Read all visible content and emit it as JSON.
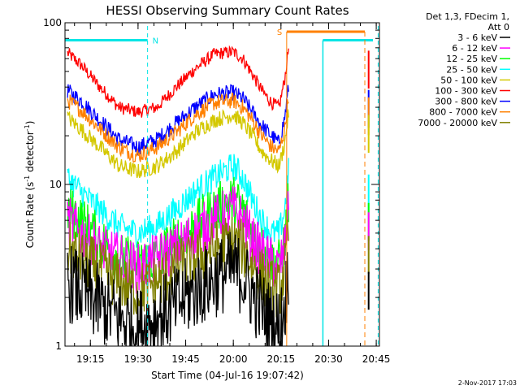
{
  "chart_data": {
    "type": "line",
    "title": "HESSI Observing Summary Count Rates",
    "xlabel": "Start Time (04-Jul-16 19:07:42)",
    "ylabel_main": "Count Rate (s",
    "ylabel_sup1": "-1",
    "ylabel_mid": " detector",
    "ylabel_sup2": "-1",
    "ylabel_end": ")",
    "yscale": "log",
    "ylim": [
      1,
      100
    ],
    "xlim_minutes": [
      19.1167,
      20.7667
    ],
    "x_tick_labels": [
      "19:15",
      "19:30",
      "19:45",
      "20:00",
      "20:15",
      "20:30",
      "20:45"
    ],
    "x_tick_values": [
      19.25,
      19.5,
      19.75,
      20.0,
      20.25,
      20.5,
      20.75
    ],
    "y_tick_labels": [
      "1",
      "10",
      "100"
    ],
    "y_tick_values": [
      1,
      10,
      100
    ],
    "legend": {
      "header": [
        "Det 1,3, FDecim 1,",
        "Att 0"
      ],
      "entries": [
        {
          "label": "3 - 6 keV",
          "color": "#000000"
        },
        {
          "label": "6 - 12 keV",
          "color": "#ff00ff"
        },
        {
          "label": "12 - 25 keV",
          "color": "#00ff00"
        },
        {
          "label": "25 - 50 keV",
          "color": "#00ffff"
        },
        {
          "label": "50 - 100 keV",
          "color": "#d4c800"
        },
        {
          "label": "100 - 300 keV",
          "color": "#ff0000"
        },
        {
          "label": "300 - 800 keV",
          "color": "#0000ff"
        },
        {
          "label": "800 - 7000 keV",
          "color": "#ff8000"
        },
        {
          "label": "7000 - 20000 keV",
          "color": "#808000"
        }
      ]
    },
    "flags": [
      {
        "label": "N",
        "color": "#00e5e5"
      },
      {
        "label": "S",
        "color": "#ff8000"
      }
    ],
    "series": [
      {
        "name": "100 - 300 keV",
        "color": "#ff0000",
        "x": [
          19.13,
          19.2,
          19.3,
          19.4,
          19.5,
          19.6,
          19.7,
          19.8,
          19.9,
          20.0,
          20.05,
          20.1,
          20.15,
          20.2,
          20.24,
          20.27,
          20.29
        ],
        "y": [
          65,
          55,
          40,
          30,
          28,
          30,
          40,
          52,
          64,
          66,
          60,
          48,
          38,
          32,
          30,
          45,
          70
        ]
      },
      {
        "name": "300 - 800 keV",
        "color": "#0000ff",
        "x": [
          19.13,
          19.2,
          19.3,
          19.4,
          19.5,
          19.6,
          19.7,
          19.8,
          19.9,
          20.0,
          20.05,
          20.1,
          20.15,
          20.2,
          20.24,
          20.27,
          20.29
        ],
        "y": [
          38,
          33,
          25,
          19,
          17,
          19,
          24,
          30,
          36,
          37,
          34,
          28,
          23,
          20,
          18,
          26,
          40
        ]
      },
      {
        "name": "800 - 7000 keV",
        "color": "#ff8000",
        "x": [
          19.13,
          19.2,
          19.3,
          19.4,
          19.5,
          19.6,
          19.7,
          19.8,
          19.9,
          20.0,
          20.05,
          20.1,
          20.15,
          20.2,
          20.24,
          20.27,
          20.29
        ],
        "y": [
          33,
          29,
          22,
          17,
          15,
          17,
          21,
          27,
          32,
          33,
          30,
          25,
          20,
          17,
          16,
          22,
          36
        ]
      },
      {
        "name": "50 - 100 keV",
        "color": "#d4c800",
        "x": [
          19.13,
          19.2,
          19.3,
          19.4,
          19.5,
          19.6,
          19.7,
          19.8,
          19.9,
          20.0,
          20.05,
          20.1,
          20.15,
          20.2,
          20.24,
          20.27,
          20.29
        ],
        "y": [
          26,
          22,
          17,
          13,
          12,
          13,
          16,
          21,
          25,
          27,
          24,
          20,
          16,
          14,
          13,
          18,
          28
        ]
      },
      {
        "name": "25 - 50 keV",
        "color": "#00ffff",
        "x": [
          19.13,
          19.2,
          19.3,
          19.4,
          19.5,
          19.6,
          19.7,
          19.8,
          19.9,
          20.0,
          20.05,
          20.1,
          20.15,
          20.2,
          20.24,
          20.27,
          20.29
        ],
        "y": [
          11,
          9,
          7,
          5.5,
          5,
          5.5,
          7,
          9,
          11,
          13,
          11,
          8,
          6,
          5,
          5,
          7,
          12
        ]
      },
      {
        "name": "12 - 25 keV",
        "color": "#00ff00",
        "x": [
          19.13,
          19.2,
          19.3,
          19.4,
          19.5,
          19.6,
          19.7,
          19.8,
          19.9,
          20.0,
          20.05,
          20.1,
          20.15,
          20.2,
          20.24,
          20.27,
          20.29
        ],
        "y": [
          7,
          6,
          4.5,
          3.5,
          3.2,
          3.5,
          4.5,
          5.5,
          7,
          8,
          7,
          5,
          4,
          3.5,
          3.2,
          4.5,
          8
        ]
      },
      {
        "name": "6 - 12 keV",
        "color": "#ff00ff",
        "x": [
          19.13,
          19.2,
          19.3,
          19.4,
          19.5,
          19.6,
          19.7,
          19.8,
          19.9,
          20.0,
          20.05,
          20.1,
          20.15,
          20.2,
          20.24,
          20.27,
          20.29
        ],
        "y": [
          6,
          5,
          4,
          3.5,
          3,
          3.5,
          4,
          5,
          6,
          7,
          6,
          4.5,
          3.8,
          3.3,
          3,
          4,
          7
        ]
      },
      {
        "name": "7000 - 20000 keV",
        "color": "#808000",
        "x": [
          19.13,
          19.2,
          19.3,
          19.4,
          19.5,
          19.6,
          19.7,
          19.8,
          19.9,
          20.0,
          20.05,
          20.1,
          20.15,
          20.2,
          20.24,
          20.27,
          20.29
        ],
        "y": [
          4,
          3.5,
          3,
          2.5,
          2.2,
          2.5,
          3,
          3.5,
          4,
          4.5,
          4,
          3.2,
          2.7,
          2.3,
          2.2,
          3,
          5
        ]
      },
      {
        "name": "3 - 6 keV",
        "color": "#000000",
        "x": [
          19.13,
          19.2,
          19.3,
          19.4,
          19.5,
          19.6,
          19.7,
          19.8,
          19.9,
          20.0,
          20.05,
          20.1,
          20.15,
          20.2,
          20.24,
          20.27,
          20.29
        ],
        "y": [
          2.5,
          2.2,
          1.8,
          1.5,
          1.3,
          1.5,
          1.8,
          2.2,
          2.6,
          3,
          2.7,
          2.1,
          1.7,
          1.4,
          1.3,
          1.8,
          3
        ]
      }
    ],
    "footer": "2-Nov-2017 17:03"
  }
}
